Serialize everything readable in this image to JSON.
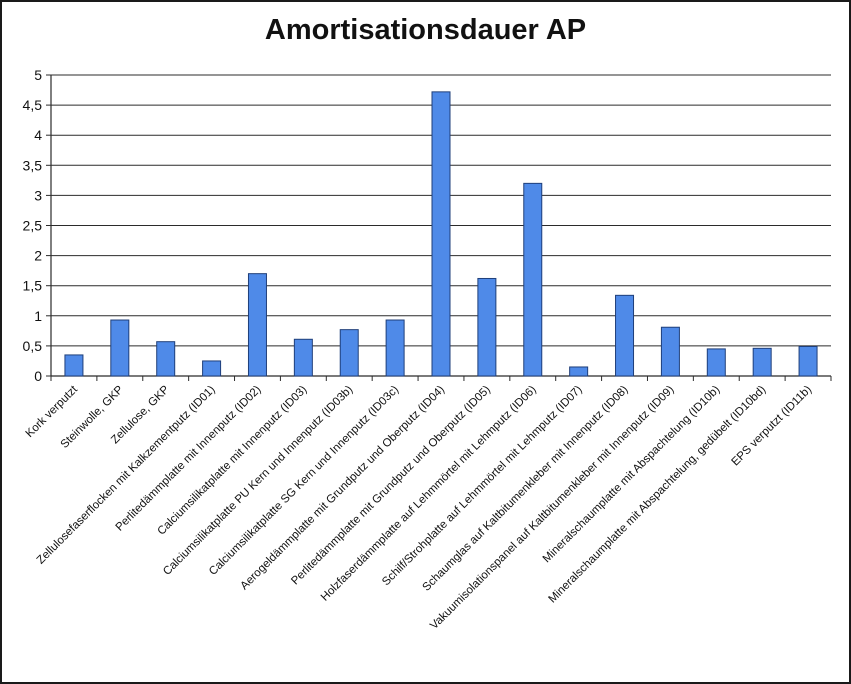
{
  "chart_data": {
    "type": "bar",
    "title": "Amortisationsdauer AP",
    "xlabel": "",
    "ylabel": "",
    "ylim": [
      0,
      5
    ],
    "yticks": [
      0,
      0.5,
      1,
      1.5,
      2,
      2.5,
      3,
      3.5,
      4,
      4.5,
      5
    ],
    "ytick_labels": [
      "0",
      "0,5",
      "1",
      "1,5",
      "2",
      "2,5",
      "3",
      "3,5",
      "4",
      "4,5",
      "5"
    ],
    "grid": true,
    "legend": "none",
    "bar_color": "#4f8ae8",
    "bar_edge_color": "#1f3f7a",
    "categories": [
      "Kork verputzt",
      "Steinwolle, GKP",
      "Zellulose, GKP",
      "Zellulosefaserflocken mit Kalkzementputz (ID01)",
      "Perlitedämmplatte mit Innenputz (ID02)",
      "Calciumsilikatplatte mit Innenputz (ID03)",
      "Calciumsilikatplatte PU Kern und Innenputz (ID03b)",
      "Calciumsilikatplatte SG Kern und Innenputz (ID03c)",
      "Aerogeldämmplatte mit Grundputz und Oberputz (ID04)",
      "Perlitedämmplatte mit Grundputz und Oberputz (ID05)",
      "Holzfaserdämmplatte auf Lehmmörtel mit Lehmputz (ID06)",
      "Schilf/Strohplatte auf Lehmmörtel mit Lehmputz (ID07)",
      "Schaumglas auf Kaltbitumenkleber mit Innenputz (ID08)",
      "Vakuumisolationspanel auf Kaltbitumenkleber mit Innenputz (ID09)",
      "Mineralschaumplatte mit Abspachtelung (ID10b)",
      "Mineralschaumplatte mit Abspachtelung, gedübelt (ID10bd)",
      "EPS verputzt (ID11b)"
    ],
    "values": [
      0.35,
      0.93,
      0.57,
      0.25,
      1.7,
      0.61,
      0.77,
      0.93,
      4.72,
      1.62,
      3.2,
      0.15,
      1.34,
      0.81,
      0.45,
      0.46,
      0.49
    ]
  }
}
